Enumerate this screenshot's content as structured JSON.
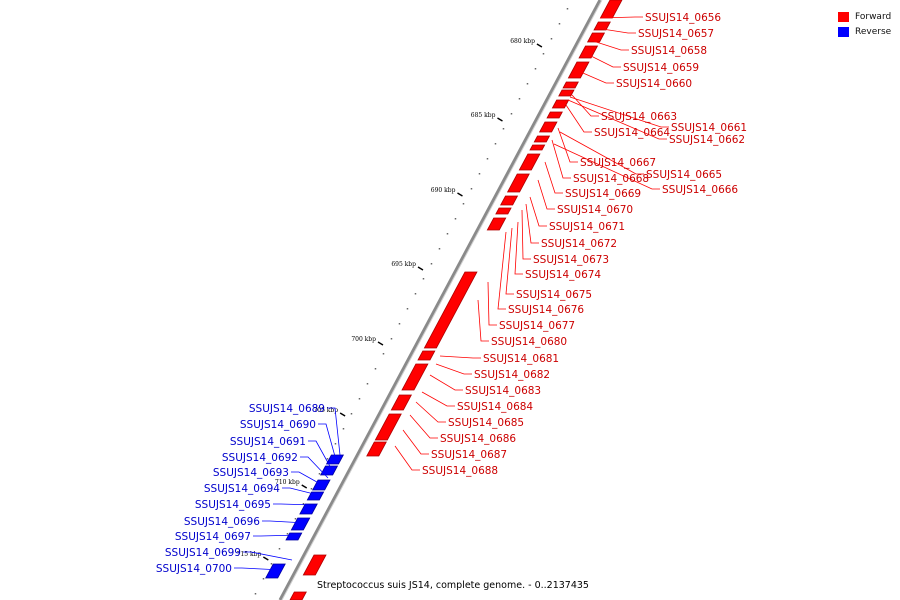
{
  "legend": {
    "forward": {
      "label": "Forward",
      "color": "#ff0000"
    },
    "reverse": {
      "label": "Reverse",
      "color": "#0000ff"
    }
  },
  "caption": "Streptococcus suis JS14, complete genome. - 0..2137435",
  "genome_axis": {
    "line_color": "#888888"
  },
  "ticks_kbp": [
    "680 kbp",
    "685 kbp",
    "690 kbp",
    "695 kbp",
    "700 kbp",
    "705 kbp",
    "710 kbp",
    "715 kbp"
  ],
  "forward_labels": [
    "SSUJS14_0656",
    "SSUJS14_0657",
    "SSUJS14_0658",
    "SSUJS14_0659",
    "SSUJS14_0660",
    "SSUJS14_0663",
    "SSUJS14_0661",
    "SSUJS14_0664",
    "SSUJS14_0662",
    "SSUJS14_0667",
    "SSUJS14_0665",
    "SSUJS14_0668",
    "SSUJS14_0666",
    "SSUJS14_0669",
    "SSUJS14_0670",
    "SSUJS14_0671",
    "SSUJS14_0672",
    "SSUJS14_0673",
    "SSUJS14_0674",
    "SSUJS14_0675",
    "SSUJS14_0676",
    "SSUJS14_0677",
    "SSUJS14_0680",
    "SSUJS14_0681",
    "SSUJS14_0682",
    "SSUJS14_0683",
    "SSUJS14_0684",
    "SSUJS14_0685",
    "SSUJS14_0686",
    "SSUJS14_0687",
    "SSUJS14_0688"
  ],
  "reverse_labels": [
    "SSUJS14_0689",
    "SSUJS14_0690",
    "SSUJS14_0691",
    "SSUJS14_0692",
    "SSUJS14_0693",
    "SSUJS14_0694",
    "SSUJS14_0695",
    "SSUJS14_0696",
    "SSUJS14_0697",
    "SSUJS14_0699",
    "SSUJS14_0700"
  ]
}
